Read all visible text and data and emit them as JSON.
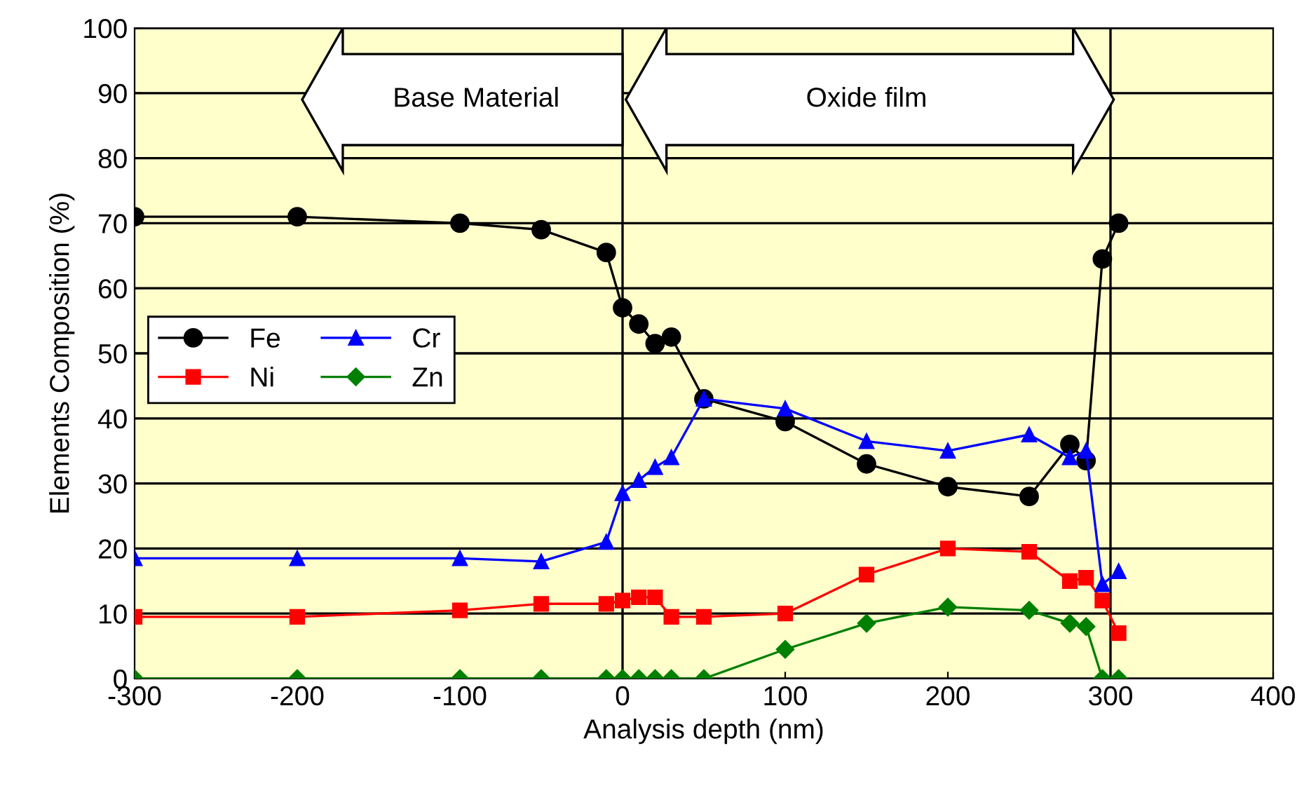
{
  "chart_data": {
    "type": "line",
    "xlabel": "Analysis depth (nm)",
    "ylabel": "Elements Composition (%)",
    "x": [
      -300,
      -200,
      -100,
      -50,
      -10,
      0,
      10,
      20,
      30,
      50,
      100,
      150,
      200,
      250,
      275,
      285,
      295,
      305
    ],
    "series": [
      {
        "name": "Fe",
        "color": "#000000",
        "marker": "circle",
        "values": [
          71,
          71,
          70,
          69,
          65.5,
          57,
          54.5,
          51.5,
          52.5,
          43,
          39.5,
          33,
          29.5,
          28,
          36,
          33.5,
          64.5,
          70
        ]
      },
      {
        "name": "Ni",
        "color": "#ff0000",
        "marker": "square",
        "values": [
          9.5,
          9.5,
          10.5,
          11.5,
          11.5,
          12,
          12.5,
          12.5,
          9.5,
          9.5,
          10,
          16,
          20,
          19.5,
          15,
          15.5,
          12,
          7
        ]
      },
      {
        "name": "Cr",
        "color": "#0000ff",
        "marker": "triangle",
        "values": [
          18.5,
          18.5,
          18.5,
          18,
          21,
          28.5,
          30.5,
          32.5,
          34,
          43,
          41.5,
          36.5,
          35,
          37.5,
          34,
          35,
          14.5,
          16.5
        ]
      },
      {
        "name": "Zn",
        "color": "#008000",
        "marker": "diamond",
        "values": [
          0,
          0,
          0,
          0,
          0,
          0,
          0,
          0,
          0,
          0,
          4.5,
          8.5,
          11,
          10.5,
          8.5,
          8,
          0,
          0
        ]
      }
    ],
    "xlim": [
      -300,
      400
    ],
    "xticks": [
      -300,
      -200,
      -100,
      0,
      100,
      200,
      300,
      400
    ],
    "ylim": [
      0,
      100
    ],
    "yticks": [
      0,
      10,
      20,
      30,
      40,
      50,
      60,
      70,
      80,
      90,
      100
    ],
    "grid": "y",
    "legend": "center left",
    "ref_lines": [
      {
        "axis": "x",
        "value": 0
      },
      {
        "axis": "x",
        "value": 300
      }
    ],
    "annotations": [
      "Base Material",
      "Oxide film"
    ]
  }
}
